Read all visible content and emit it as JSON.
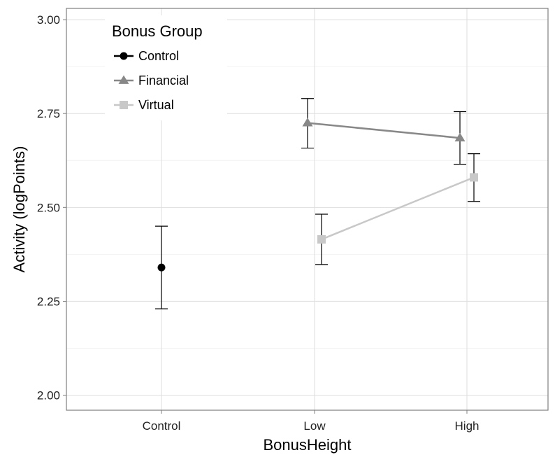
{
  "chart_data": {
    "type": "line",
    "xlabel": "BonusHeight",
    "ylabel": "Activity (logPoints)",
    "categories": [
      "Control",
      "Low",
      "High"
    ],
    "ylim": [
      1.96,
      3.03
    ],
    "y_ticks": [
      "2.00",
      "2.25",
      "2.50",
      "2.75",
      "3.00"
    ],
    "grid": true,
    "legend": {
      "title": "Bonus Group",
      "position": "top-left",
      "entries": [
        "Control",
        "Financial",
        "Virtual"
      ]
    },
    "series": [
      {
        "name": "Control",
        "color": "#000000",
        "marker": "circle",
        "points": [
          {
            "x": "Control",
            "y": 2.34,
            "ymin": 2.23,
            "ymax": 2.45
          }
        ]
      },
      {
        "name": "Financial",
        "color": "#888888",
        "marker": "triangle",
        "points": [
          {
            "x": "Low",
            "y": 2.725,
            "ymin": 2.658,
            "ymax": 2.79
          },
          {
            "x": "High",
            "y": 2.685,
            "ymin": 2.615,
            "ymax": 2.755
          }
        ]
      },
      {
        "name": "Virtual",
        "color": "#c8c8c8",
        "marker": "square",
        "points": [
          {
            "x": "Low",
            "y": 2.415,
            "ymin": 2.348,
            "ymax": 2.482
          },
          {
            "x": "High",
            "y": 2.58,
            "ymin": 2.516,
            "ymax": 2.643
          }
        ]
      }
    ]
  }
}
